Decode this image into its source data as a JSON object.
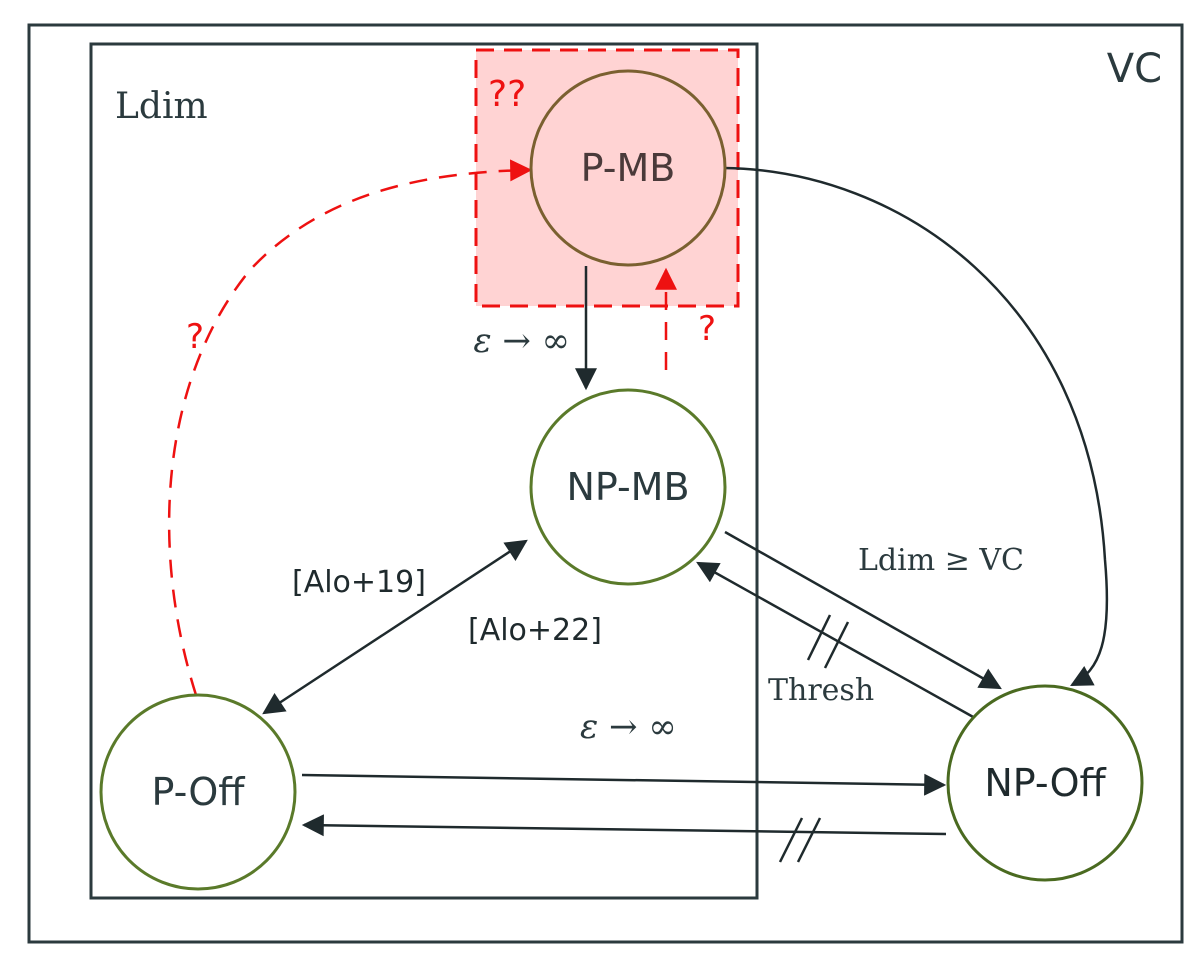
{
  "containers": {
    "outer_label": "VC",
    "inner_label": "Ldim"
  },
  "nodes": {
    "p_mb": "P-MB",
    "np_mb": "NP-MB",
    "p_off": "P-Off",
    "np_off": "NP-Off"
  },
  "edge_labels": {
    "pmb_to_npmb": "ε → ∞",
    "poff_to_npoff": "ε → ∞",
    "npmb_to_npoff": "Ldim ≥ VC",
    "npoff_to_npmb": "Thresh",
    "citation_1": "[Alo+19]",
    "citation_2": "[Alo+22]"
  },
  "unknowns": {
    "box_label": "??",
    "left_arc": "?",
    "npmb_to_pmb": "?"
  },
  "colors": {
    "ink": "#2b3a3e",
    "node_stroke": "#5a7a2a",
    "pmb_stroke": "#7a6030",
    "highlight_fill": "#ffd3d3",
    "unknown_red": "#ee1111"
  }
}
